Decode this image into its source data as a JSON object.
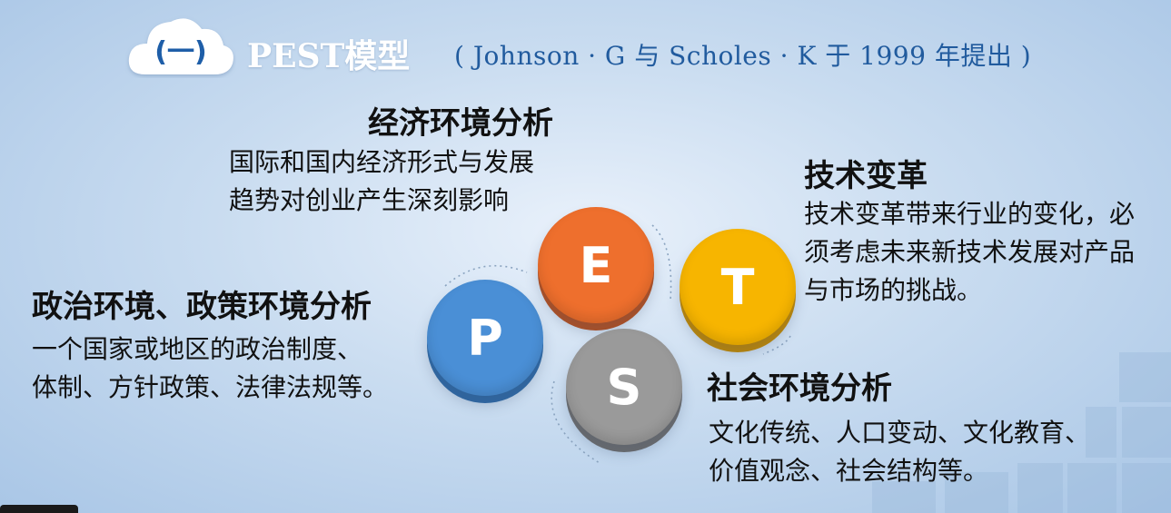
{
  "header": {
    "badge": "(一)",
    "title": "PEST模型",
    "subtitle": "( Johnson · G 与 Scholes · K 于 1999 年提出 )"
  },
  "economic": {
    "heading": "经济环境分析",
    "lines": [
      "国际和国内经济形式与发展",
      "趋势对创业产生深刻影响"
    ]
  },
  "technology": {
    "heading": "技术变革",
    "lines": [
      "技术变革带来行业的变化，必",
      "须考虑未来新技术发展对产品",
      "与市场的挑战。"
    ]
  },
  "political": {
    "heading": "政治环境、政策环境分析",
    "lines": [
      "一个国家或地区的政治制度、",
      "体制、方针政策、法律法规等。"
    ]
  },
  "social": {
    "heading": "社会环境分析",
    "lines": [
      "文化传统、人口变动、文化教育、",
      "价值观念、社会结构等。"
    ]
  },
  "circles": {
    "p": {
      "letter": "P",
      "color": "#4a8fd6"
    },
    "e": {
      "letter": "E",
      "color": "#ee6f2d"
    },
    "t": {
      "letter": "T",
      "color": "#f7b500"
    },
    "s": {
      "letter": "S",
      "color": "#9a9a9a"
    }
  }
}
